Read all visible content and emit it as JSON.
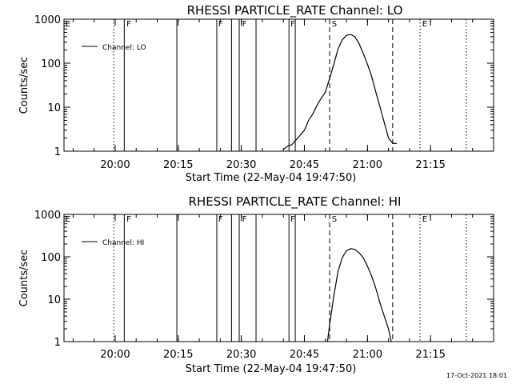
{
  "timestamp": "17-Oct-2021 18:01",
  "chart_data": [
    {
      "type": "line",
      "title": "RHESSI PARTICLE_RATE Channel: LO",
      "xlabel": "Start Time (22-May-04 19:47:50)",
      "ylabel": "Counts/sec",
      "legend": "Channel: LO",
      "legend_placement": "top-left",
      "yscale": "log",
      "ylim": [
        1,
        1000
      ],
      "xlim_minutes": [
        "19:47:50",
        "21:30:00"
      ],
      "xticks": [
        "20:00",
        "20:15",
        "20:30",
        "20:45",
        "21:00",
        "21:15"
      ],
      "yticks": [
        "1",
        "10",
        "100",
        "1000"
      ],
      "flags": [
        "E",
        "F",
        "F",
        "F",
        "F",
        "S",
        "E"
      ],
      "markers": {
        "dotted": [
          "19:59:40",
          "21:12:30",
          "21:23:30"
        ],
        "solid": [
          "20:02:10",
          "20:14:40",
          "20:24:10",
          "20:27:40",
          "20:29:30",
          "20:33:30",
          "20:41:20",
          "20:42:50"
        ],
        "dashed": [
          "20:51:00",
          "21:06:00"
        ]
      },
      "x": [
        "20:40:00",
        "20:41:00",
        "20:42:00",
        "20:43:00",
        "20:44:00",
        "20:45:00",
        "20:46:00",
        "20:47:00",
        "20:48:00",
        "20:49:00",
        "20:50:00",
        "20:51:00",
        "20:52:00",
        "20:53:00",
        "20:54:00",
        "20:55:00",
        "20:56:00",
        "20:57:00",
        "20:58:00",
        "20:59:00",
        "21:00:00",
        "21:01:00",
        "21:02:00",
        "21:03:00",
        "21:04:00",
        "21:05:00",
        "21:06:00",
        "21:07:00"
      ],
      "values": [
        1.1,
        1.3,
        1.4,
        1.8,
        2.3,
        3,
        5,
        7,
        11,
        16,
        22,
        45,
        95,
        210,
        340,
        430,
        450,
        400,
        280,
        165,
        95,
        50,
        22,
        10,
        4.5,
        2,
        1.5,
        1.5
      ]
    },
    {
      "type": "line",
      "title": "RHESSI PARTICLE_RATE Channel: HI",
      "xlabel": "Start Time (22-May-04 19:47:50)",
      "ylabel": "Counts/sec",
      "legend": "Channel: HI",
      "legend_placement": "top-left",
      "yscale": "log",
      "ylim": [
        1,
        1000
      ],
      "xlim_minutes": [
        "19:47:50",
        "21:30:00"
      ],
      "xticks": [
        "20:00",
        "20:15",
        "20:30",
        "20:45",
        "21:00",
        "21:15"
      ],
      "yticks": [
        "1",
        "10",
        "100",
        "1000"
      ],
      "flags": [
        "E",
        "F",
        "F",
        "F",
        "F",
        "S",
        "E"
      ],
      "markers": {
        "dotted": [
          "19:59:40",
          "21:12:30",
          "21:23:30"
        ],
        "solid": [
          "20:02:10",
          "20:14:40",
          "20:24:10",
          "20:27:40",
          "20:29:30",
          "20:33:30",
          "20:41:20",
          "20:42:50"
        ],
        "dashed": [
          "20:51:00",
          "21:06:00"
        ]
      },
      "x": [
        "20:50:30",
        "20:51:00",
        "20:52:00",
        "20:53:00",
        "20:54:00",
        "20:55:00",
        "20:56:00",
        "20:57:00",
        "20:58:00",
        "20:59:00",
        "21:00:00",
        "21:01:00",
        "21:02:00",
        "21:03:00",
        "21:04:00",
        "21:05:00",
        "21:05:40"
      ],
      "values": [
        1,
        2.5,
        12,
        45,
        95,
        140,
        155,
        150,
        125,
        95,
        60,
        35,
        18,
        8,
        4,
        2,
        1
      ]
    }
  ]
}
